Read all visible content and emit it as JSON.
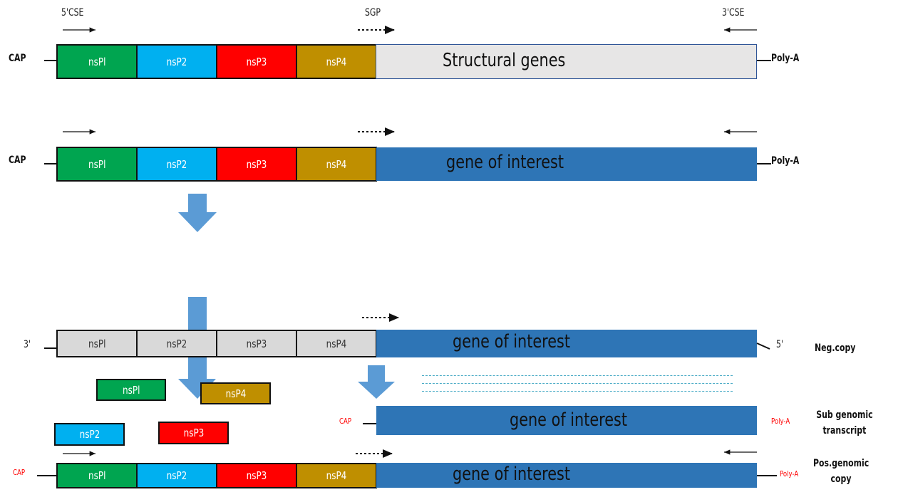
{
  "labels": {
    "cse5": "5'CSE",
    "sgp": "SGP",
    "cse3": "3'CSE",
    "cap": "CAP",
    "poly_a": "Poly-A",
    "three_prime": "3'",
    "five_prime": "5'",
    "neg_copy": "Neg.copy",
    "sub_genomic": "Sub genomic\ntranscript",
    "pos_genomic": "Pos.genomic\ncopy"
  },
  "segments": {
    "nsp1": "nsPl",
    "nsp2": "nsP2",
    "nsp3": "nsP3",
    "nsp4": "nsP4"
  },
  "texts": {
    "structural_genes": "Structural genes",
    "gene_of_interest": "gene of interest"
  },
  "colors": {
    "nsp1": "#00a550",
    "nsp2": "#00b0f0",
    "nsp3": "#ff0000",
    "nsp4": "#bf8f00",
    "gene_blue": "#2e75b6",
    "arrow_blue": "#5b9bd5"
  }
}
